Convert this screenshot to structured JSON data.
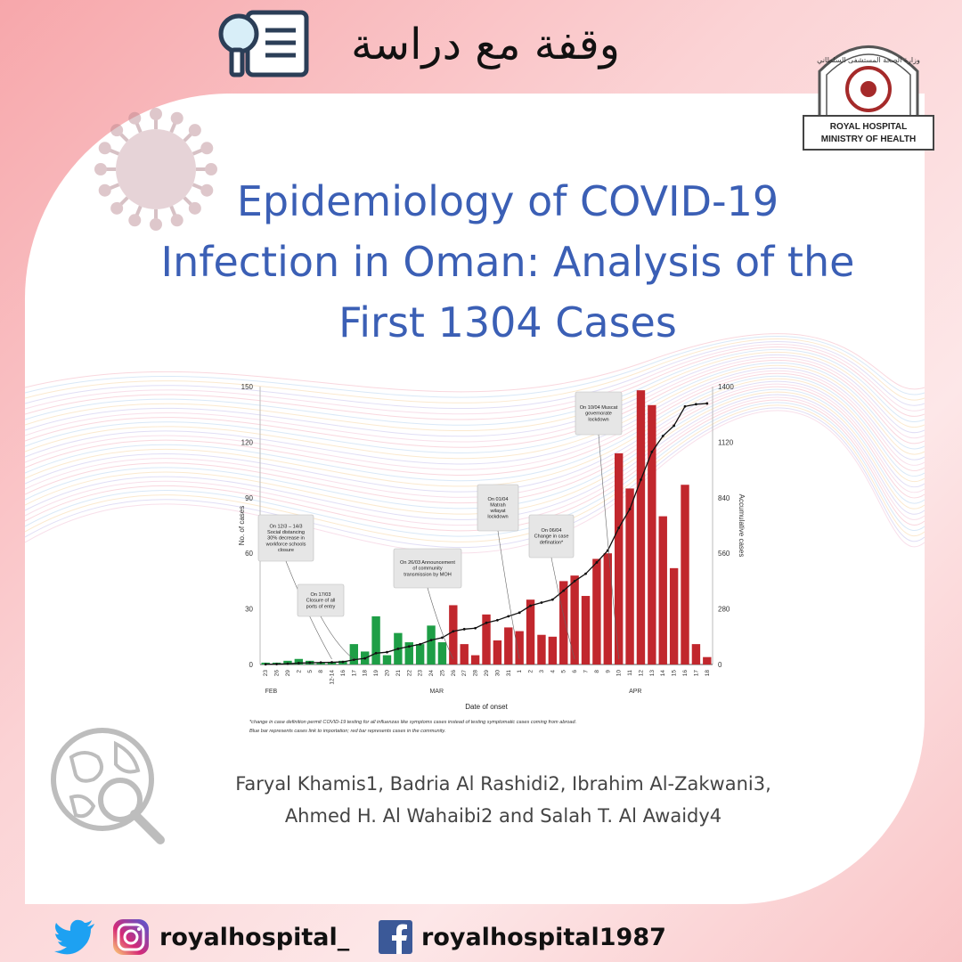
{
  "header": {
    "title_ar": "وقفة مع دراسة"
  },
  "logo": {
    "line1": "ROYAL HOSPITAL",
    "line2": "MINISTRY OF HEALTH",
    "arabic": "وزارة الصحة المستشفى السلطاني"
  },
  "paper": {
    "title_lines": [
      "Epidemiology of COVID-19",
      "Infection in Oman: Analysis of the",
      "First 1304 Cases"
    ],
    "authors_lines": [
      "Faryal Khamis1, Badria Al Rashidi2, Ibrahim Al-Zakwani3,",
      "Ahmed H. Al Wahaibi2 and Salah T. Al Awaidy4"
    ]
  },
  "social": {
    "instagram": "royalhospital_",
    "facebook": "royalhospital1987"
  },
  "colors": {
    "title_blue": "#3b5fb5",
    "green": "#1e9e46",
    "red": "#c1272d"
  },
  "chart_data": {
    "type": "bar",
    "xlabel": "Date of onset",
    "ylabel": "No. of cases",
    "y2label": "Accumulative cases",
    "ylim": [
      0,
      150
    ],
    "y2lim": [
      0,
      1400
    ],
    "yticks": [
      0,
      30,
      60,
      90,
      120,
      150
    ],
    "y2ticks": [
      0,
      280,
      560,
      840,
      1120,
      1400
    ],
    "categories": [
      "23",
      "26",
      "29",
      "2",
      "5",
      "8",
      "12-14",
      "16",
      "17",
      "18",
      "19",
      "20",
      "21",
      "22",
      "23",
      "24",
      "25",
      "26",
      "27",
      "28",
      "29",
      "30",
      "31",
      "1",
      "2",
      "3",
      "4",
      "5",
      "6",
      "7",
      "8",
      "9",
      "10",
      "11",
      "12",
      "13",
      "14",
      "15",
      "16",
      "17",
      "18"
    ],
    "month_labels": [
      "FEB",
      "MAR",
      "APR"
    ],
    "series": [
      {
        "name": "Blue bar represents cases link to importation",
        "color": "#1e9e46",
        "values": [
          1,
          1,
          2,
          3,
          2,
          1,
          1,
          2,
          11,
          7,
          26,
          5,
          17,
          12,
          11,
          21,
          12,
          null,
          null,
          null,
          null,
          null,
          null,
          null,
          null,
          null,
          null,
          null,
          null,
          null,
          null,
          null,
          null,
          null,
          null,
          null,
          null,
          null,
          null,
          null,
          null
        ]
      },
      {
        "name": "red bar represents cases in the community",
        "color": "#c1272d",
        "values": [
          null,
          null,
          null,
          null,
          null,
          null,
          null,
          null,
          null,
          null,
          null,
          null,
          null,
          null,
          null,
          null,
          null,
          32,
          11,
          5,
          27,
          13,
          20,
          18,
          35,
          16,
          15,
          45,
          48,
          37,
          57,
          60,
          114,
          95,
          148,
          140,
          80,
          52,
          97,
          11,
          4
        ]
      },
      {
        "name": "Accumulative cases",
        "type": "line",
        "values": [
          1,
          2,
          4,
          7,
          9,
          10,
          11,
          13,
          24,
          31,
          57,
          62,
          79,
          91,
          102,
          123,
          135,
          167,
          178,
          183,
          210,
          223,
          243,
          261,
          296,
          312,
          327,
          372,
          420,
          457,
          514,
          574,
          688,
          783,
          931,
          1071,
          1151,
          1203,
          1300,
          1311,
          1315
        ]
      }
    ],
    "annotations": [
      {
        "text": "On 12/3 – 14/3 Social distancing 30% decrease in workforce schools closure",
        "x_index": 6
      },
      {
        "text": "On 17/03 Closure of all ports of entry",
        "x_index": 8
      },
      {
        "text": "On 26/03 Announcement of community transmission by MOH",
        "x_index": 17
      },
      {
        "text": "On 01/04 Matrah wilayat lockdown",
        "x_index": 23
      },
      {
        "text": "On 06/04 Change in case defination*",
        "x_index": 28
      },
      {
        "text": "On 10/04 Muscat governorate lockdown",
        "x_index": 32
      }
    ],
    "footnotes": [
      "*change in case definition permit COVID-19 testing for all influenzas like symptoms cases instead of testing symptomatic cases coming from abroad.",
      "Blue bar represents cases link to importation; red bar represents cases in the community."
    ]
  }
}
